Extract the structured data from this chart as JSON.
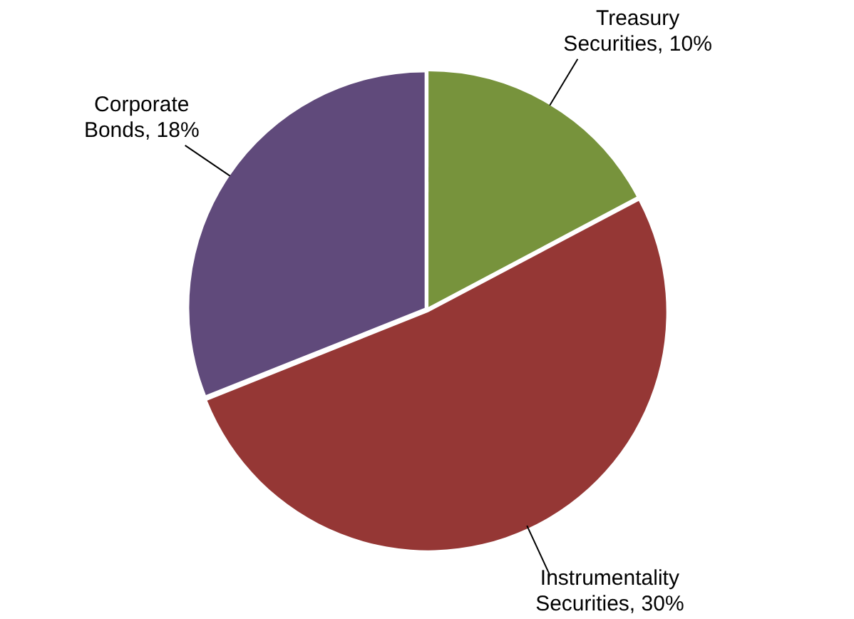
{
  "chart_data": {
    "type": "pie",
    "categories": [
      "Treasury Securities",
      "Instrumentality Securities",
      "Corporate Bonds"
    ],
    "values": [
      10,
      30,
      18
    ],
    "colors": [
      "#77933c",
      "#953735",
      "#604a7b"
    ],
    "value_labels": [
      "10%",
      "30%",
      "18%"
    ],
    "legend": false
  }
}
